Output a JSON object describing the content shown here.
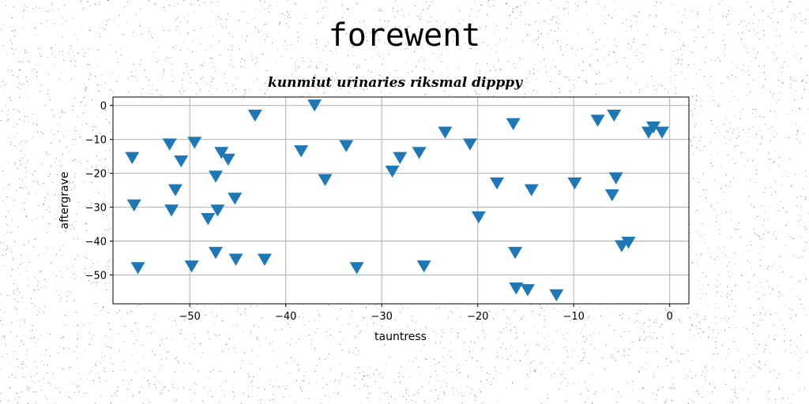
{
  "page": {
    "title": "forewent"
  },
  "colors": {
    "marker": "#1f77b4",
    "grid": "#b0b0b0",
    "axis": "#000000"
  },
  "chart_data": {
    "type": "scatter",
    "title": "kunmiut urinaries riksmal dipppy",
    "xlabel": "tauntress",
    "ylabel": "aftergrave",
    "xlim": [
      -58,
      2
    ],
    "ylim": [
      -58.5,
      2.5
    ],
    "xticks": [
      -50,
      -40,
      -30,
      -20,
      -10,
      0
    ],
    "yticks": [
      0,
      -10,
      -20,
      -30,
      -40,
      -50
    ],
    "grid": true,
    "marker": "triangle-down",
    "x": [
      -56,
      -55.8,
      -55.4,
      -52.1,
      -51.9,
      -51.5,
      -50.9,
      -49.8,
      -49.5,
      -48.1,
      -47.3,
      -47.3,
      -47.1,
      -46.7,
      -46,
      -45.3,
      -45.2,
      -43.2,
      -42.2,
      -38.4,
      -37,
      -35.9,
      -33.7,
      -32.6,
      -28.9,
      -28.1,
      -26.1,
      -25.6,
      -23.4,
      -20.8,
      -19.9,
      -18,
      -16.3,
      -16.1,
      -16,
      -14.8,
      -14.4,
      -11.8,
      -9.9,
      -7.5,
      -6,
      -5.8,
      -5.6,
      -5,
      -4.3,
      -2.2,
      -1.7,
      -0.8
    ],
    "y": [
      -15.5,
      -29.5,
      -48,
      -11.5,
      -31,
      -25,
      -16.5,
      -47.5,
      -11,
      -33.5,
      -21,
      -43.5,
      -31,
      -14,
      -16,
      -27.5,
      -45.5,
      -3,
      -45.5,
      -13.5,
      0,
      -22,
      -12,
      -48,
      -19.5,
      -15.5,
      -14,
      -47.5,
      -8,
      -11.5,
      -33,
      -23,
      -5.5,
      -43.5,
      -54,
      -54.5,
      -25,
      -56,
      -23,
      -4.5,
      -26.5,
      -3,
      -21.5,
      -41.5,
      -40.5,
      -8,
      -6.5,
      -8
    ]
  }
}
